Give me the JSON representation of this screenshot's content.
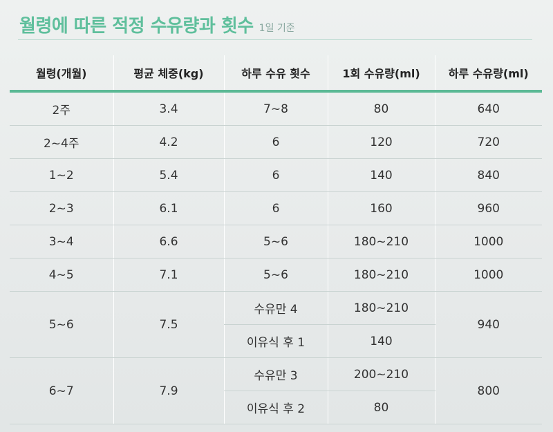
{
  "header": {
    "title": "월령에 따른 적정 수유량과 횟수",
    "subtitle": "1일 기준"
  },
  "table": {
    "columns": [
      "월령(개월)",
      "평균 체중(kg)",
      "하루 수유 횟수",
      "1회 수유량(ml)",
      "하루 수유량(ml)"
    ],
    "rows": [
      {
        "age": "2주",
        "weight": "3.4",
        "feeds": "7~8",
        "per_feed": "80",
        "daily": "640"
      },
      {
        "age": "2~4주",
        "weight": "4.2",
        "feeds": "6",
        "per_feed": "120",
        "daily": "720"
      },
      {
        "age": "1~2",
        "weight": "5.4",
        "feeds": "6",
        "per_feed": "140",
        "daily": "840"
      },
      {
        "age": "2~3",
        "weight": "6.1",
        "feeds": "6",
        "per_feed": "160",
        "daily": "960"
      },
      {
        "age": "3~4",
        "weight": "6.6",
        "feeds": "5~6",
        "per_feed": "180~210",
        "daily": "1000"
      },
      {
        "age": "4~5",
        "weight": "7.1",
        "feeds": "5~6",
        "per_feed": "180~210",
        "daily": "1000"
      }
    ],
    "split_rows": [
      {
        "age": "5~6",
        "weight": "7.5",
        "daily": "940",
        "sub": [
          {
            "feeds": "수유만 4",
            "per_feed": "180~210"
          },
          {
            "feeds": "이유식 후 1",
            "per_feed": "140"
          }
        ]
      },
      {
        "age": "6~7",
        "weight": "7.9",
        "daily": "800",
        "sub": [
          {
            "feeds": "수유만 3",
            "per_feed": "200~210"
          },
          {
            "feeds": "이유식 후 2",
            "per_feed": "80"
          }
        ]
      }
    ]
  },
  "colors": {
    "accent": "#5bb995",
    "title": "#5fbf9c"
  }
}
